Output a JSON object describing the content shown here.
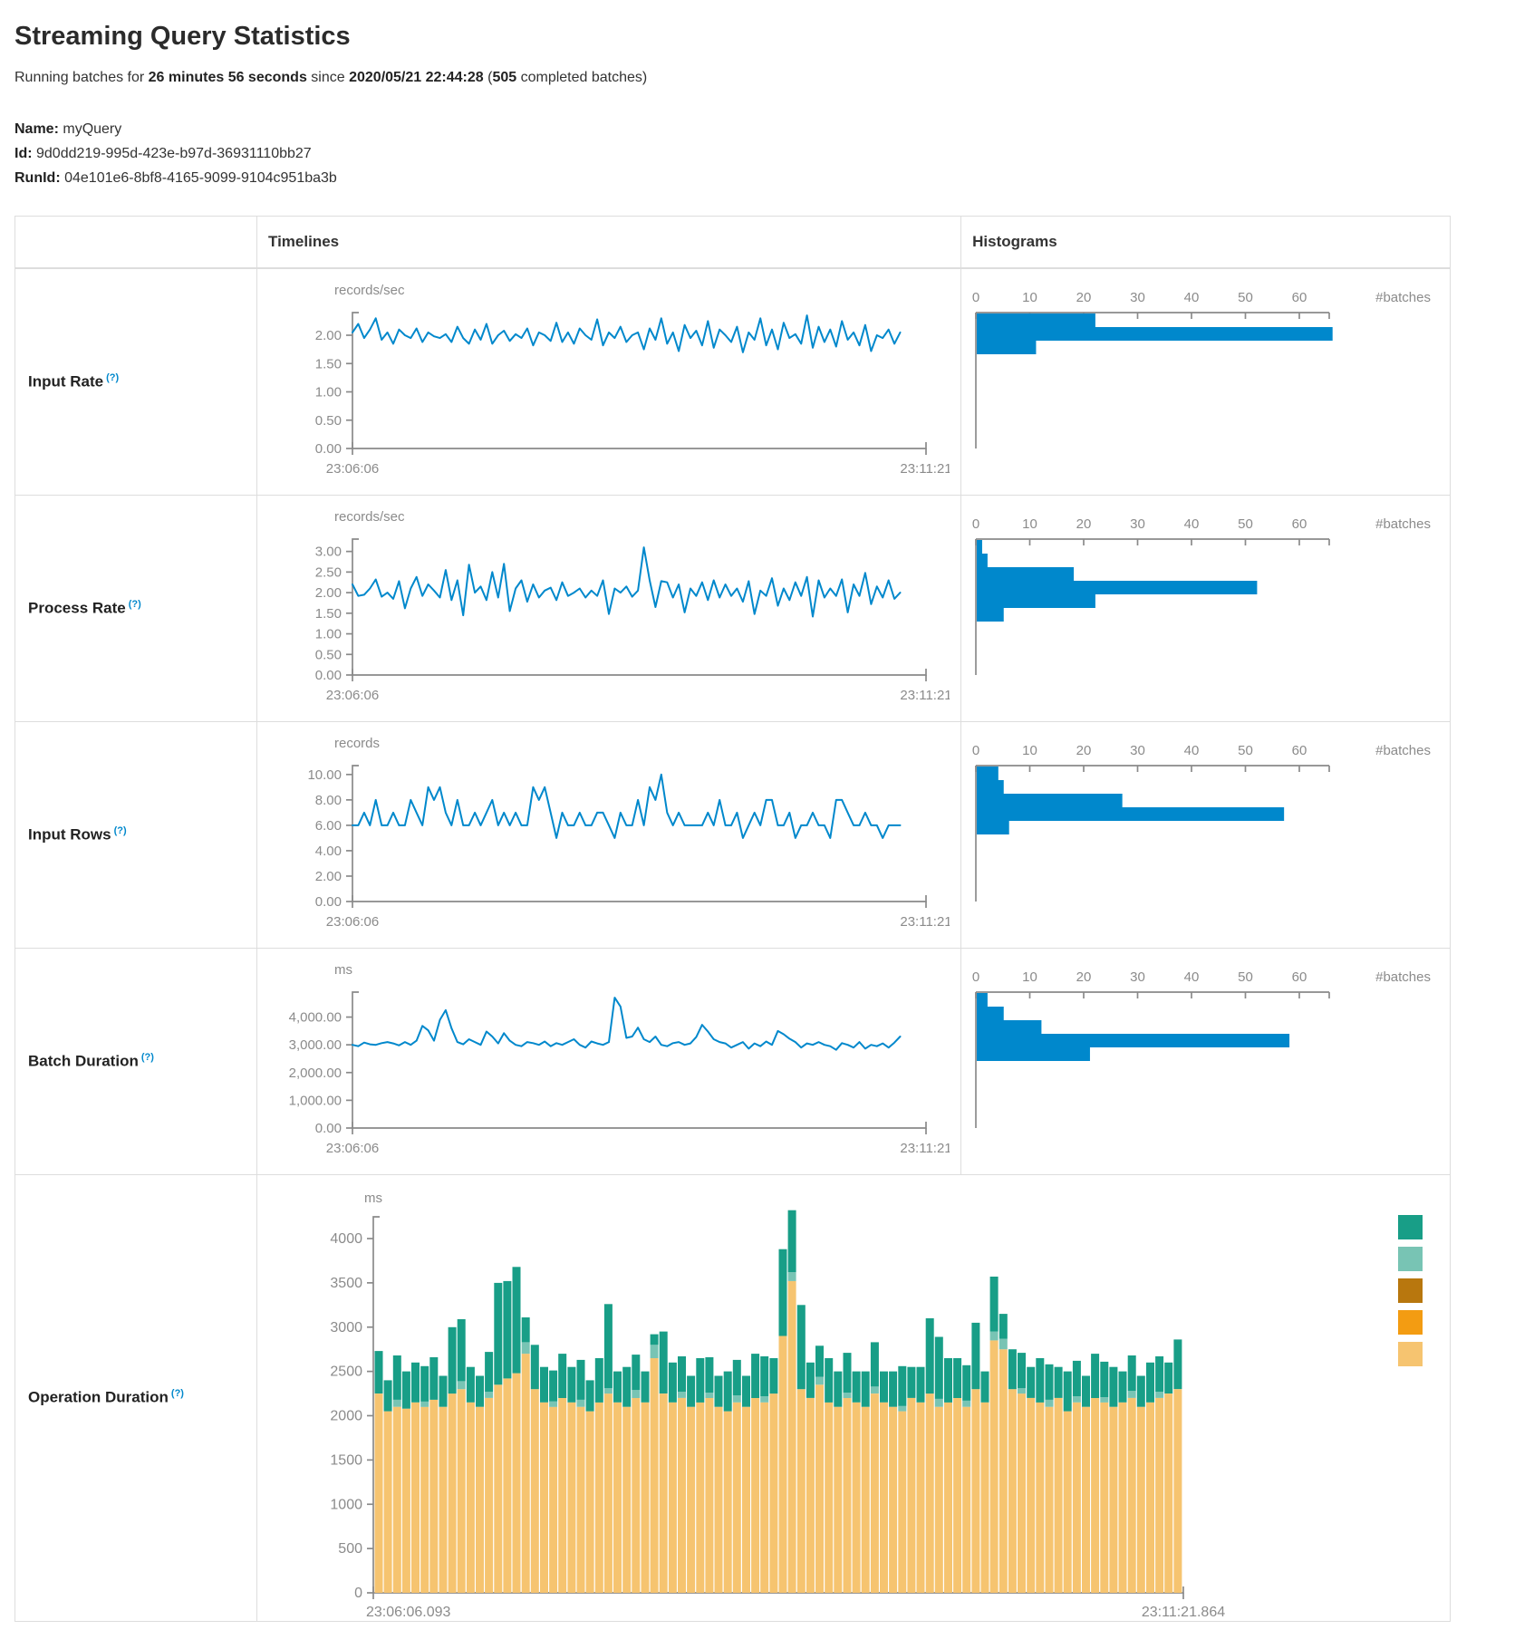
{
  "colors": {
    "accent_blue": "#0088cc",
    "axis_line": "#8a8a8a",
    "tick_text": "#8b8b8b",
    "help": "#0088cc",
    "green": "#189e87",
    "light_green": "#78c4b4",
    "dark_orange": "#b8770e",
    "orange": "#f39c12",
    "light_orange": "#f6c470",
    "border": "#dddddd"
  },
  "page": {
    "title": "Streaming Query Statistics",
    "subtitle": {
      "prefix": "Running batches for ",
      "duration": "26 minutes 56 seconds",
      "middle": " since ",
      "start_time": "2020/05/21 22:44:28",
      "paren_open": " (",
      "batches": "505",
      "suffix": " completed batches)"
    },
    "name_label": "Name:",
    "name_value": "myQuery",
    "id_label": "Id:",
    "id_value": "9d0dd219-995d-423e-b97d-36931110bb27",
    "runid_label": "RunId:",
    "runid_value": "04e101e6-8bf8-4165-9099-9104c951ba3b"
  },
  "table": {
    "col_timelines": "Timelines",
    "col_histograms": "Histograms"
  },
  "rows": [
    {
      "label": "Input Rate",
      "help": "(?)",
      "timeline": {
        "type": "line",
        "unit": "records/sec",
        "x_start": "23:06:06",
        "x_end": "23:11:21",
        "y_tick_values": [
          0,
          0.5,
          1,
          1.5,
          2
        ],
        "y_tick_labels": [
          "0.00",
          "0.50",
          "1.00",
          "1.50",
          "2.00"
        ],
        "y_max": 2.4,
        "values": [
          2.05,
          2.2,
          1.95,
          2.1,
          2.3,
          1.92,
          2.05,
          1.85,
          2.1,
          2.0,
          1.95,
          2.12,
          1.88,
          2.05,
          1.98,
          1.95,
          2.02,
          1.88,
          2.15,
          1.95,
          1.85,
          2.1,
          1.92,
          2.2,
          1.85,
          2.0,
          2.08,
          1.9,
          2.02,
          1.95,
          2.12,
          1.82,
          2.05,
          2.0,
          1.9,
          2.22,
          1.88,
          2.05,
          1.85,
          2.12,
          2.0,
          1.92,
          2.28,
          1.82,
          2.05,
          1.95,
          2.15,
          1.88,
          2.0,
          2.05,
          1.75,
          2.12,
          1.92,
          2.3,
          1.85,
          2.05,
          1.72,
          2.18,
          1.95,
          2.08,
          1.82,
          2.25,
          1.78,
          2.1,
          2.0,
          1.88,
          2.15,
          1.7,
          2.05,
          1.92,
          2.3,
          1.82,
          2.1,
          1.75,
          2.22,
          1.95,
          2.02,
          1.85,
          2.35,
          1.78,
          2.15,
          1.88,
          2.1,
          1.8,
          2.25,
          1.92,
          2.05,
          1.82,
          2.18,
          1.72,
          2.0,
          1.95,
          2.1,
          1.85,
          2.05
        ]
      },
      "histogram": {
        "type": "bar",
        "tick_values": [
          0,
          10,
          20,
          30,
          40,
          50,
          60
        ],
        "tick_labels": [
          "0",
          "10",
          "20",
          "30",
          "40",
          "50",
          "60"
        ],
        "axis_label": "#batches",
        "bins": [
          22,
          66,
          11
        ]
      }
    },
    {
      "label": "Process Rate",
      "help": "(?)",
      "timeline": {
        "type": "line",
        "unit": "records/sec",
        "x_start": "23:06:06",
        "x_end": "23:11:21",
        "y_tick_values": [
          0,
          0.5,
          1,
          1.5,
          2,
          2.5,
          3
        ],
        "y_tick_labels": [
          "0.00",
          "0.50",
          "1.00",
          "1.50",
          "2.00",
          "2.50",
          "3.00"
        ],
        "y_max": 3.3,
        "values": [
          2.2,
          1.92,
          1.95,
          2.1,
          2.32,
          1.9,
          2.0,
          1.85,
          2.28,
          1.62,
          2.1,
          2.38,
          1.92,
          2.2,
          2.05,
          1.88,
          2.55,
          1.82,
          2.3,
          1.45,
          2.68,
          2.0,
          2.15,
          1.82,
          2.5,
          1.88,
          2.7,
          1.55,
          2.1,
          2.3,
          1.78,
          2.2,
          1.88,
          2.05,
          2.12,
          1.82,
          2.25,
          1.92,
          2.0,
          2.1,
          1.88,
          2.05,
          1.92,
          2.3,
          1.48,
          2.1,
          2.0,
          2.15,
          1.9,
          2.05,
          3.1,
          2.3,
          1.65,
          2.28,
          2.25,
          1.88,
          2.2,
          1.52,
          2.1,
          1.92,
          2.25,
          1.82,
          2.3,
          1.88,
          2.2,
          1.92,
          2.1,
          1.78,
          2.28,
          1.48,
          2.05,
          1.92,
          2.35,
          1.68,
          2.1,
          1.82,
          2.25,
          1.92,
          2.38,
          1.42,
          2.3,
          1.88,
          2.1,
          1.92,
          2.32,
          1.52,
          2.2,
          1.92,
          2.48,
          1.72,
          2.15,
          1.88,
          2.3,
          1.85,
          2.0
        ]
      },
      "histogram": {
        "type": "bar",
        "tick_values": [
          0,
          10,
          20,
          30,
          40,
          50,
          60
        ],
        "tick_labels": [
          "0",
          "10",
          "20",
          "30",
          "40",
          "50",
          "60"
        ],
        "axis_label": "#batches",
        "bins": [
          1,
          2,
          18,
          52,
          22,
          5
        ]
      }
    },
    {
      "label": "Input Rows",
      "help": "(?)",
      "timeline": {
        "type": "line",
        "unit": "records",
        "x_start": "23:06:06",
        "x_end": "23:11:21",
        "y_tick_values": [
          0,
          2,
          4,
          6,
          8,
          10
        ],
        "y_tick_labels": [
          "0.00",
          "2.00",
          "4.00",
          "6.00",
          "8.00",
          "10.00"
        ],
        "y_max": 10.7,
        "values": [
          6,
          6,
          7,
          6,
          8,
          6,
          6,
          7,
          6,
          6,
          8,
          7,
          6,
          9,
          8,
          9,
          7,
          6,
          8,
          6,
          6,
          7,
          6,
          7,
          8,
          6,
          7,
          6,
          7,
          6,
          6,
          9,
          8,
          9,
          7,
          5,
          7,
          6,
          6,
          7,
          6,
          6,
          7,
          7,
          6,
          5,
          7,
          6,
          6,
          8,
          6,
          9,
          8,
          10,
          7,
          6,
          7,
          6,
          6,
          6,
          6,
          7,
          6,
          8,
          6,
          6,
          7,
          5,
          6,
          7,
          6,
          8,
          8,
          6,
          6,
          7,
          5,
          6,
          6,
          7,
          6,
          6,
          5,
          8,
          8,
          7,
          6,
          6,
          7,
          6,
          6,
          5,
          6,
          6,
          6
        ]
      },
      "histogram": {
        "type": "bar",
        "tick_values": [
          0,
          10,
          20,
          30,
          40,
          50,
          60
        ],
        "tick_labels": [
          "0",
          "10",
          "20",
          "30",
          "40",
          "50",
          "60"
        ],
        "axis_label": "#batches",
        "bins": [
          4,
          5,
          27,
          57,
          6
        ]
      }
    },
    {
      "label": "Batch Duration",
      "help": "(?)",
      "timeline": {
        "type": "line",
        "unit": "ms",
        "x_start": "23:06:06",
        "x_end": "23:11:21",
        "y_tick_values": [
          0,
          1000,
          2000,
          3000,
          4000
        ],
        "y_tick_labels": [
          "0.00",
          "1,000.00",
          "2,000.00",
          "3,000.00",
          "4,000.00"
        ],
        "y_max": 4900,
        "values": [
          3000,
          2950,
          3080,
          3020,
          3000,
          3060,
          3100,
          3050,
          2980,
          3100,
          3000,
          3150,
          3680,
          3520,
          3150,
          3900,
          4250,
          3600,
          3100,
          3020,
          3200,
          3100,
          3000,
          3480,
          3300,
          3050,
          3420,
          3150,
          3000,
          2950,
          3100,
          3060,
          3000,
          3120,
          2950,
          3060,
          3000,
          3100,
          3200,
          3000,
          2900,
          3120,
          3050,
          3000,
          3100,
          4700,
          4380,
          3250,
          3300,
          3620,
          3200,
          3100,
          3300,
          3000,
          2950,
          3060,
          3100,
          3000,
          3050,
          3280,
          3720,
          3480,
          3200,
          3100,
          3050,
          2900,
          3000,
          3100,
          2860,
          3050,
          2950,
          3120,
          3000,
          3500,
          3380,
          3220,
          3100,
          2900,
          3050,
          3000,
          3100,
          3000,
          2950,
          2820,
          3060,
          3000,
          2900,
          3100,
          2860,
          3000,
          2950,
          3050,
          2900,
          3080,
          3300
        ]
      },
      "histogram": {
        "type": "bar",
        "tick_values": [
          0,
          10,
          20,
          30,
          40,
          50,
          60
        ],
        "tick_labels": [
          "0",
          "10",
          "20",
          "30",
          "40",
          "50",
          "60"
        ],
        "axis_label": "#batches",
        "bins": [
          2,
          5,
          12,
          58,
          21
        ]
      }
    }
  ],
  "operation": {
    "label": "Operation Duration",
    "help": "(?)",
    "chart": {
      "type": "stacked-bar",
      "unit": "ms",
      "x_start": "23:06:06.093",
      "x_end": "23:11:21.864",
      "y_tick_values": [
        0,
        500,
        1000,
        1500,
        2000,
        2500,
        3000,
        3500,
        4000
      ],
      "y_tick_labels": [
        "0",
        "500",
        "1000",
        "1500",
        "2000",
        "2500",
        "3000",
        "3500",
        "4000"
      ],
      "y_max": 4550,
      "series": [
        {
          "color_name": "light-orange",
          "color": "#f6c470",
          "values": [
            2250,
            2050,
            2100,
            2080,
            2150,
            2100,
            2180,
            2100,
            2250,
            2300,
            2150,
            2100,
            2200,
            2350,
            2420,
            2480,
            2700,
            2300,
            2150,
            2100,
            2200,
            2150,
            2100,
            2050,
            2150,
            2250,
            2150,
            2100,
            2200,
            2150,
            2650,
            2250,
            2150,
            2200,
            2100,
            2150,
            2200,
            2100,
            2050,
            2150,
            2100,
            2200,
            2150,
            2250,
            2900,
            3520,
            2300,
            2200,
            2350,
            2150,
            2100,
            2200,
            2150,
            2100,
            2250,
            2150,
            2100,
            2050,
            2200,
            2150,
            2250,
            2100,
            2150,
            2200,
            2100,
            2300,
            2150,
            2850,
            2750,
            2300,
            2250,
            2200,
            2150,
            2100,
            2200,
            2050,
            2150,
            2100,
            2200,
            2150,
            2100,
            2150,
            2200,
            2100,
            2150,
            2200,
            2250,
            2300
          ]
        },
        {
          "color_name": "light-green",
          "color": "#78c4b4",
          "values": [
            0,
            0,
            80,
            0,
            0,
            60,
            0,
            0,
            0,
            90,
            0,
            0,
            70,
            0,
            0,
            0,
            130,
            0,
            0,
            60,
            0,
            0,
            80,
            0,
            0,
            60,
            0,
            0,
            90,
            0,
            150,
            0,
            0,
            70,
            0,
            0,
            60,
            0,
            0,
            80,
            0,
            0,
            70,
            0,
            0,
            100,
            0,
            0,
            90,
            0,
            0,
            60,
            0,
            0,
            80,
            0,
            0,
            60,
            0,
            0,
            0,
            90,
            0,
            0,
            70,
            0,
            0,
            100,
            120,
            0,
            60,
            0,
            0,
            80,
            0,
            0,
            70,
            0,
            0,
            60,
            0,
            0,
            80,
            0,
            0,
            70,
            0,
            0
          ]
        },
        {
          "color_name": "green",
          "color": "#189e87",
          "values": [
            480,
            350,
            500,
            420,
            450,
            400,
            480,
            350,
            750,
            700,
            400,
            350,
            450,
            1150,
            1100,
            1200,
            280,
            500,
            400,
            350,
            500,
            400,
            450,
            350,
            500,
            950,
            350,
            450,
            400,
            350,
            120,
            700,
            450,
            400,
            350,
            500,
            400,
            350,
            450,
            400,
            350,
            500,
            450,
            400,
            980,
            700,
            950,
            400,
            350,
            500,
            400,
            450,
            350,
            400,
            500,
            350,
            400,
            450,
            350,
            400,
            850,
            700,
            500,
            450,
            400,
            750,
            350,
            620,
            280,
            450,
            400,
            350,
            500,
            400,
            350,
            450,
            400,
            350,
            500,
            400,
            450,
            350,
            400,
            350,
            450,
            400,
            350,
            560
          ]
        }
      ],
      "legend_swatches": [
        "#189e87",
        "#78c4b4",
        "#b8770e",
        "#f39c12",
        "#f6c470"
      ]
    }
  }
}
